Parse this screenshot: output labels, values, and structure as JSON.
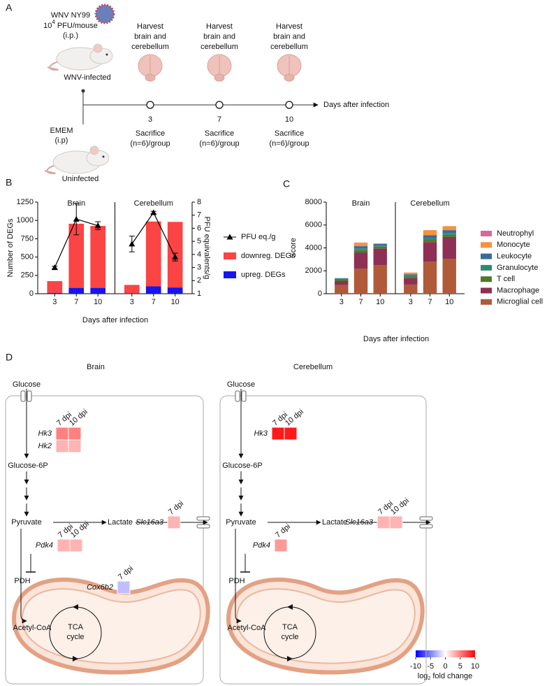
{
  "panel_labels": {
    "a": "A",
    "b": "B",
    "c": "C",
    "d": "D"
  },
  "panel_a": {
    "virus": "WNV NY99",
    "dose": {
      "base": "10",
      "exponent": "4",
      "unit": "PFU/mouse"
    },
    "route_infected": "(i.p.)",
    "infected_label": "WNV-infected",
    "control": "EMEM",
    "route_control": "(i.p)",
    "control_label": "Uninfected",
    "timepoints": [
      {
        "day": "3",
        "harvest": [
          "Harvest",
          "brain and",
          "cerebellum"
        ],
        "sacrifice": [
          "Sacrifice",
          "(n=6)/group"
        ]
      },
      {
        "day": "7",
        "harvest": [
          "Harvest",
          "brain and",
          "cerebellum"
        ],
        "sacrifice": [
          "Sacrifice",
          "(n=6)/group"
        ]
      },
      {
        "day": "10",
        "harvest": [
          "Harvest",
          "brain and",
          "cerebellum"
        ],
        "sacrifice": [
          "Sacrifice",
          "(n=6)/group"
        ]
      }
    ],
    "axis_label": "Days after infection"
  },
  "chart_data": [
    {
      "type": "bar",
      "stacked": true,
      "x_label": "Days after infection",
      "y_label": "Number of DEGs",
      "y2_label": "PFU equivalents/g",
      "facets": [
        {
          "name": "Brain",
          "categories": [
            "3",
            "7",
            "10"
          ]
        },
        {
          "name": "Cerebellum",
          "categories": [
            "3",
            "7",
            "10"
          ]
        }
      ],
      "ylim": [
        0,
        1250
      ],
      "yticks": [
        0,
        250,
        500,
        750,
        1000,
        1250
      ],
      "y2lim": [
        1,
        8
      ],
      "y2ticks": [
        1,
        2,
        3,
        4,
        5,
        6,
        7,
        8
      ],
      "legend": "right",
      "series": [
        {
          "name": "PFU eq./g",
          "type": "line",
          "axis": "y2",
          "color": "#000000",
          "values": [
            3.0,
            6.7,
            6.2,
            4.8,
            7.2,
            3.8
          ],
          "errors": [
            0.1,
            1.2,
            0.3,
            0.6,
            0.1,
            0.3
          ]
        },
        {
          "name": "downreg. DEGs",
          "color": "#fb4444",
          "values": [
            160,
            875,
            845,
            115,
            885,
            895
          ]
        },
        {
          "name": "upreg. DEGs",
          "color": "#1515ee",
          "values": [
            12,
            80,
            80,
            5,
            100,
            85
          ]
        }
      ]
    },
    {
      "type": "bar",
      "stacked": true,
      "x_label": "Days after infection",
      "y_label": "Score",
      "facets": [
        {
          "name": "Brain",
          "categories": [
            "3",
            "7",
            "10"
          ]
        },
        {
          "name": "Cerebellum",
          "categories": [
            "3",
            "7",
            "10"
          ]
        }
      ],
      "ylim": [
        0,
        8000
      ],
      "yticks": [
        0,
        2000,
        4000,
        6000,
        8000
      ],
      "legend": "right",
      "series": [
        {
          "name": "Neutrophyl",
          "color": "#d9679a",
          "values": [
            0,
            20,
            20,
            0,
            0,
            0
          ]
        },
        {
          "name": "Monocyte",
          "color": "#f4923e",
          "values": [
            0,
            300,
            30,
            150,
            450,
            350
          ]
        },
        {
          "name": "Leukocyte",
          "color": "#3d6a9a",
          "values": [
            30,
            200,
            150,
            100,
            250,
            250
          ]
        },
        {
          "name": "Granulocyte",
          "color": "#2e8a6e",
          "values": [
            80,
            150,
            100,
            100,
            150,
            150
          ]
        },
        {
          "name": "T cell",
          "color": "#4f7a28",
          "values": [
            150,
            200,
            150,
            150,
            200,
            200
          ]
        },
        {
          "name": "Macrophage",
          "color": "#8e2f55",
          "values": [
            350,
            1400,
            1450,
            550,
            1700,
            1900
          ]
        },
        {
          "name": "Microglial cell",
          "color": "#b05a3a",
          "values": [
            750,
            2200,
            2500,
            800,
            2800,
            3050
          ]
        }
      ]
    }
  ],
  "panel_d": {
    "colorbar": {
      "label": {
        "base": "log",
        "subscript": "2",
        "rest": "fold change"
      },
      "lim": [
        -10,
        10
      ],
      "ticks": [
        -10,
        -5,
        0,
        5,
        10
      ],
      "colors": [
        "#0000ff",
        "#ffffff",
        "#ff0000"
      ]
    },
    "panels": [
      {
        "title": "Brain",
        "metabolites": {
          "glucose": "Glucose",
          "g6p": "Glucose-6P",
          "pyruvate": "Pyruvate",
          "lactate": "Lactate",
          "acetyl_coa": "Acetyl-CoA",
          "pdh": "PDH",
          "tca": [
            "TCA",
            "cycle"
          ]
        },
        "heatmaps": [
          {
            "genes": [
              "Hk3",
              "Hk2"
            ],
            "columns": [
              "7 dpi",
              "10 dpi"
            ],
            "values": [
              [
                5,
                5
              ],
              [
                3,
                3
              ]
            ]
          },
          {
            "genes": [
              "Slc16a3"
            ],
            "columns": [
              "7 dpi"
            ],
            "values": [
              [
                3
              ]
            ]
          },
          {
            "genes": [
              "Pdk4"
            ],
            "columns": [
              "7 dpi",
              "10 dpi"
            ],
            "values": [
              [
                3,
                3
              ]
            ]
          },
          {
            "genes": [
              "Cox6b2"
            ],
            "columns": [
              "7 dpi"
            ],
            "values": [
              [
                -2.5
              ]
            ]
          }
        ]
      },
      {
        "title": "Cerebellum",
        "metabolites": {
          "glucose": "Glucose",
          "g6p": "Glucose-6P",
          "pyruvate": "Pyruvate",
          "lactate": "Lactate",
          "acetyl_coa": "Acetyl-CoA",
          "pdh": "PDH",
          "tca": [
            "TCA",
            "cycle"
          ]
        },
        "heatmaps": [
          {
            "genes": [
              "Hk3"
            ],
            "columns": [
              "7 dpi",
              "10 dpi"
            ],
            "values": [
              [
                9,
                9
              ]
            ]
          },
          {
            "genes": [
              "Slc16a3"
            ],
            "columns": [
              "7 dpi",
              "10 dpi"
            ],
            "values": [
              [
                3,
                3
              ]
            ]
          },
          {
            "genes": [
              "Pdk4"
            ],
            "columns": [
              "7 dpi"
            ],
            "values": [
              [
                4
              ]
            ]
          }
        ]
      }
    ]
  }
}
